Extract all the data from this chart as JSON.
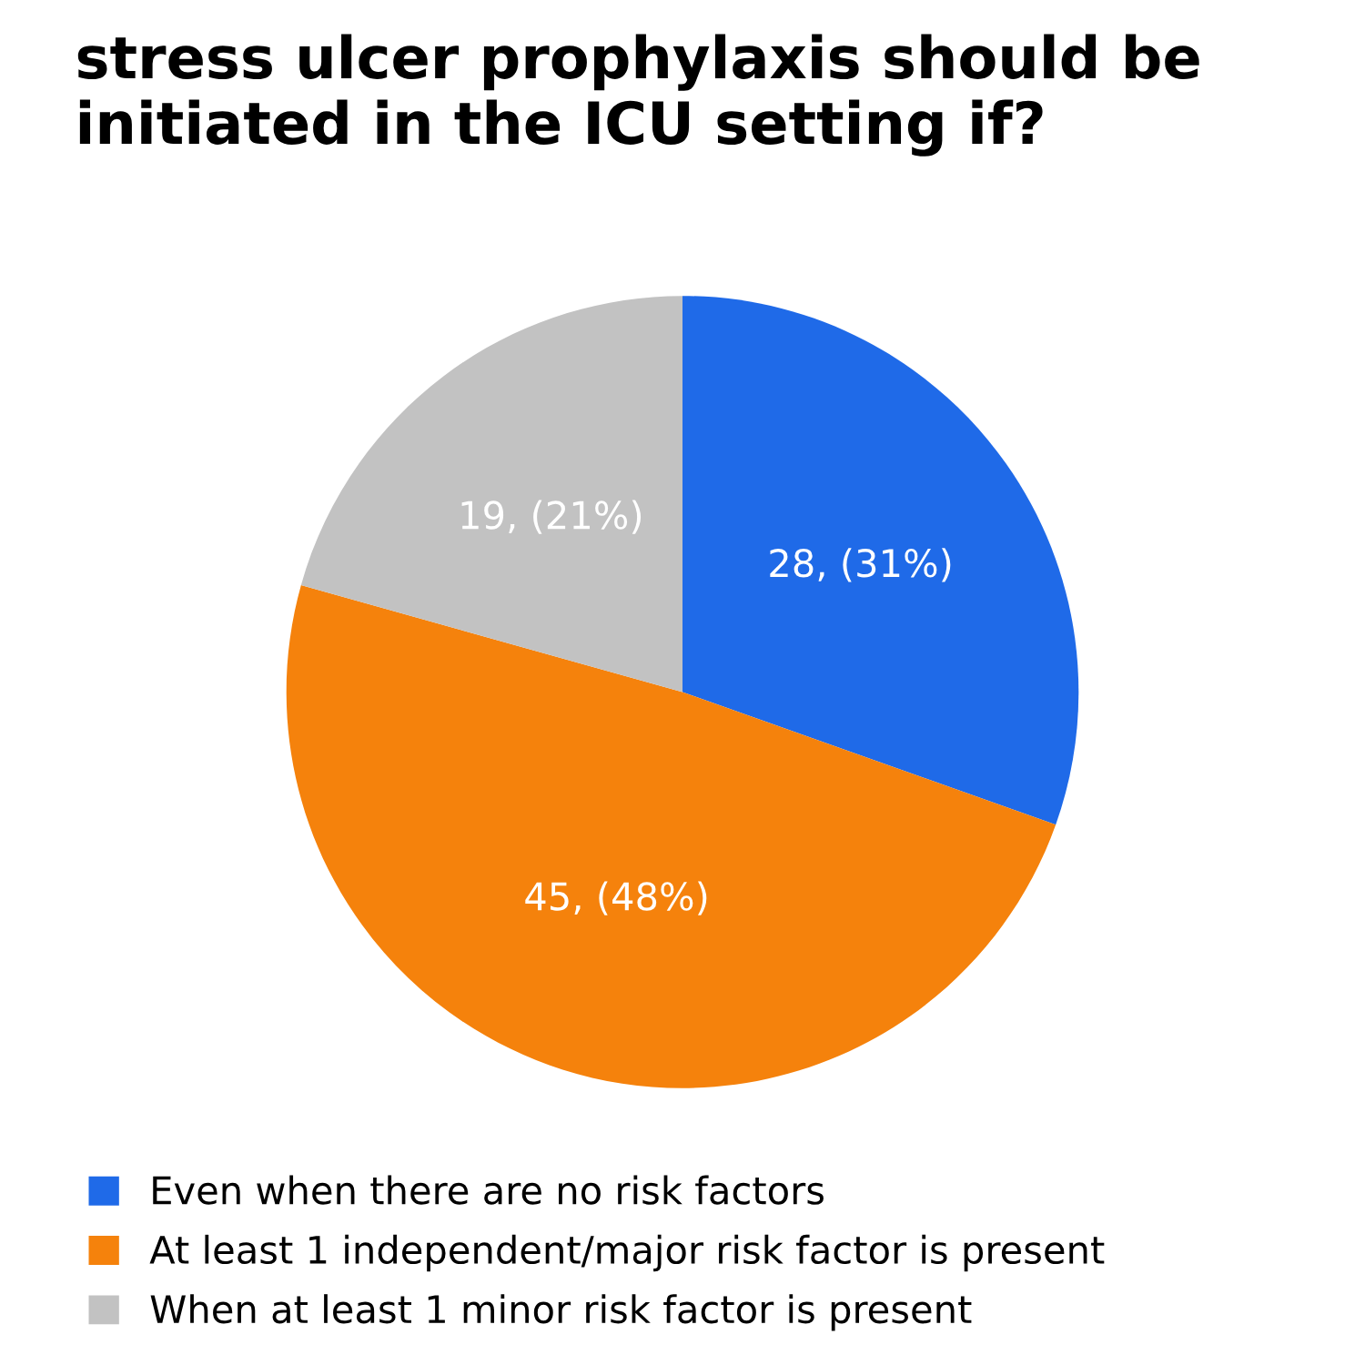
{
  "chart_data": {
    "type": "pie",
    "title": "stress ulcer prophylaxis should be initiated in the ICU setting if?",
    "categories": [
      "Even when there are no risk factors",
      "At least 1 independent/major risk factor is present",
      "When at least 1 minor risk factor is present"
    ],
    "values": [
      28,
      45,
      19
    ],
    "colors": [
      "#1f6ae8",
      "#f5820c",
      "#c2c2c2"
    ],
    "value_labels": [
      "28, (31%)",
      "45, (48%)",
      "19, (21%)"
    ],
    "legend": "bottom"
  }
}
